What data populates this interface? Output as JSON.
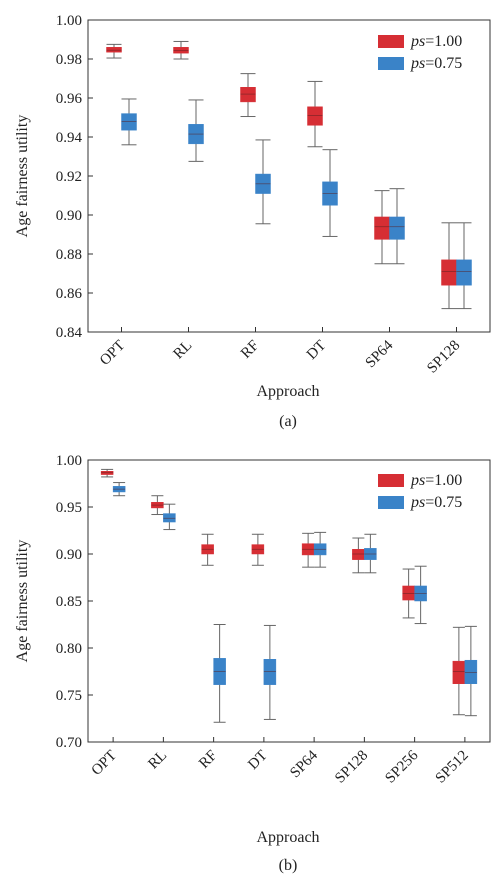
{
  "colors": {
    "ps100": "#d62e34",
    "ps075": "#3a83c8"
  },
  "chart_data": [
    {
      "type": "box",
      "caption": "(a)",
      "xlabel": "Approach",
      "ylabel": "Age fairness utility",
      "ylim": [
        0.84,
        1.0
      ],
      "yticks": [
        "0.84",
        "0.86",
        "0.88",
        "0.90",
        "0.92",
        "0.94",
        "0.96",
        "0.98",
        "1.00"
      ],
      "categories": [
        "OPT",
        "RL",
        "RF",
        "DT",
        "SP64",
        "SP128"
      ],
      "legend": {
        "position": "top-right",
        "prefix": "ps",
        "labels": [
          "=1.00",
          "=0.75"
        ]
      },
      "series": [
        {
          "name": "ps=1.00",
          "boxes": [
            {
              "min": 0.9805,
              "q1": 0.9835,
              "median": 0.9845,
              "q3": 0.986,
              "max": 0.9875
            },
            {
              "min": 0.98,
              "q1": 0.983,
              "median": 0.9843,
              "q3": 0.986,
              "max": 0.989
            },
            {
              "min": 0.9505,
              "q1": 0.958,
              "median": 0.962,
              "q3": 0.9655,
              "max": 0.9725
            },
            {
              "min": 0.935,
              "q1": 0.946,
              "median": 0.951,
              "q3": 0.9555,
              "max": 0.9685
            },
            {
              "min": 0.875,
              "q1": 0.8875,
              "median": 0.894,
              "q3": 0.899,
              "max": 0.9125
            },
            {
              "min": 0.852,
              "q1": 0.864,
              "median": 0.871,
              "q3": 0.877,
              "max": 0.896
            }
          ]
        },
        {
          "name": "ps=0.75",
          "boxes": [
            {
              "min": 0.936,
              "q1": 0.9435,
              "median": 0.948,
              "q3": 0.952,
              "max": 0.9595
            },
            {
              "min": 0.9275,
              "q1": 0.9365,
              "median": 0.9415,
              "q3": 0.9465,
              "max": 0.959
            },
            {
              "min": 0.8955,
              "q1": 0.911,
              "median": 0.916,
              "q3": 0.921,
              "max": 0.9385
            },
            {
              "min": 0.889,
              "q1": 0.905,
              "median": 0.911,
              "q3": 0.917,
              "max": 0.9335
            },
            {
              "min": 0.875,
              "q1": 0.8875,
              "median": 0.894,
              "q3": 0.899,
              "max": 0.9135
            },
            {
              "min": 0.852,
              "q1": 0.864,
              "median": 0.871,
              "q3": 0.877,
              "max": 0.896
            }
          ]
        }
      ]
    },
    {
      "type": "box",
      "caption": "(b)",
      "xlabel": "Approach",
      "ylabel": "Age fairness utility",
      "ylim": [
        0.7,
        1.0
      ],
      "yticks": [
        "0.70",
        "0.75",
        "0.80",
        "0.85",
        "0.90",
        "0.95",
        "1.00"
      ],
      "categories": [
        "OPT",
        "RL",
        "RF",
        "DT",
        "SP64",
        "SP128",
        "SP256",
        "SP512"
      ],
      "legend": {
        "position": "top-right",
        "prefix": "ps",
        "labels": [
          "=1.00",
          "=0.75"
        ]
      },
      "series": [
        {
          "name": "ps=1.00",
          "boxes": [
            {
              "min": 0.982,
              "q1": 0.9845,
              "median": 0.9865,
              "q3": 0.988,
              "max": 0.99
            },
            {
              "min": 0.942,
              "q1": 0.949,
              "median": 0.952,
              "q3": 0.955,
              "max": 0.962
            },
            {
              "min": 0.888,
              "q1": 0.9,
              "median": 0.905,
              "q3": 0.91,
              "max": 0.921
            },
            {
              "min": 0.888,
              "q1": 0.9,
              "median": 0.905,
              "q3": 0.91,
              "max": 0.921
            },
            {
              "min": 0.886,
              "q1": 0.899,
              "median": 0.905,
              "q3": 0.911,
              "max": 0.922
            },
            {
              "min": 0.88,
              "q1": 0.894,
              "median": 0.9,
              "q3": 0.905,
              "max": 0.917
            },
            {
              "min": 0.832,
              "q1": 0.851,
              "median": 0.858,
              "q3": 0.866,
              "max": 0.884
            },
            {
              "min": 0.729,
              "q1": 0.762,
              "median": 0.775,
              "q3": 0.786,
              "max": 0.822
            }
          ]
        },
        {
          "name": "ps=0.75",
          "boxes": [
            {
              "min": 0.962,
              "q1": 0.966,
              "median": 0.969,
              "q3": 0.972,
              "max": 0.976
            },
            {
              "min": 0.926,
              "q1": 0.934,
              "median": 0.938,
              "q3": 0.943,
              "max": 0.953
            },
            {
              "min": 0.721,
              "q1": 0.761,
              "median": 0.775,
              "q3": 0.789,
              "max": 0.825
            },
            {
              "min": 0.724,
              "q1": 0.761,
              "median": 0.775,
              "q3": 0.788,
              "max": 0.824
            },
            {
              "min": 0.886,
              "q1": 0.899,
              "median": 0.905,
              "q3": 0.911,
              "max": 0.923
            },
            {
              "min": 0.88,
              "q1": 0.894,
              "median": 0.9,
              "q3": 0.906,
              "max": 0.921
            },
            {
              "min": 0.826,
              "q1": 0.85,
              "median": 0.858,
              "q3": 0.866,
              "max": 0.887
            },
            {
              "min": 0.728,
              "q1": 0.762,
              "median": 0.774,
              "q3": 0.787,
              "max": 0.823
            }
          ]
        }
      ]
    }
  ]
}
